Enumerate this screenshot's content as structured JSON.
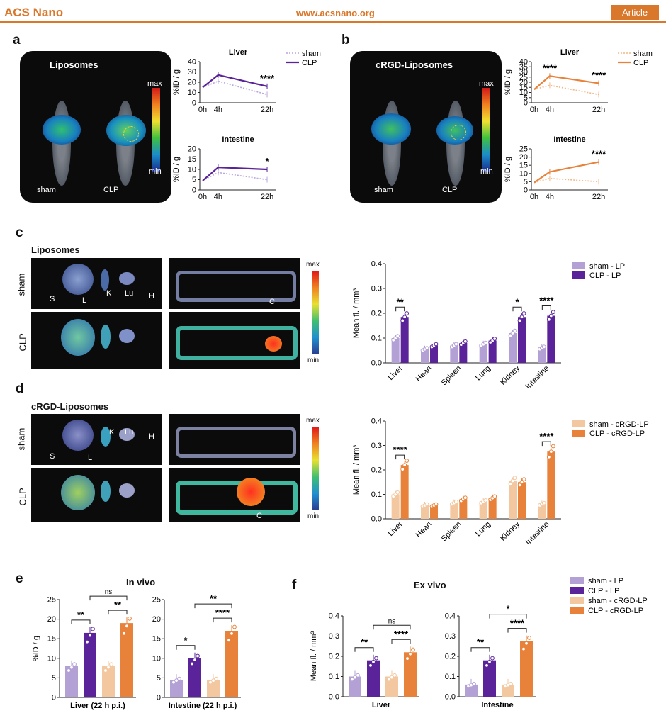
{
  "header": {
    "journal": "ACS Nano",
    "url": "www.acsnano.org",
    "section": "Article"
  },
  "panels": {
    "a": {
      "letter": "a",
      "image_title": "Liposomes",
      "sham": "sham",
      "clp": "CLP",
      "max": "max",
      "min": "min"
    },
    "b": {
      "letter": "b",
      "image_title": "cRGD-Liposomes",
      "sham": "sham",
      "clp": "CLP",
      "max": "max",
      "min": "min"
    },
    "c": {
      "letter": "c",
      "title": "Liposomes",
      "row1": "sham",
      "row2": "CLP",
      "organs": [
        "S",
        "L",
        "K",
        "Lu",
        "H"
      ],
      "colon": "C",
      "max": "max",
      "min": "min"
    },
    "d": {
      "letter": "d",
      "title": "cRGD-Liposomes",
      "row1": "sham",
      "row2": "CLP",
      "organs": [
        "S",
        "L",
        "K",
        "Lu",
        "H"
      ],
      "colon": "C",
      "max": "max",
      "min": "min"
    },
    "e": {
      "letter": "e",
      "title": "In vivo"
    },
    "f": {
      "letter": "f",
      "title": "Ex vivo"
    }
  },
  "colors": {
    "sham_lp": "#b3a1d6",
    "clp_lp": "#5b2399",
    "sham_rgd": "#f3c79f",
    "clp_rgd": "#e8823a",
    "accent": "#d9772b"
  },
  "chart_data": [
    {
      "id": "a-liver",
      "type": "line",
      "title": "Liver",
      "ylabel": "%ID / g",
      "x": [
        "0h",
        "4h",
        "22h"
      ],
      "ylim": [
        0,
        40
      ],
      "yticks": [
        0,
        10,
        20,
        30,
        40
      ],
      "series": [
        {
          "name": "sham",
          "values": [
            15,
            21,
            8
          ],
          "style": "dotted"
        },
        {
          "name": "CLP",
          "values": [
            15,
            27,
            16
          ],
          "style": "solid"
        }
      ],
      "annotations": [
        {
          "at": "22h",
          "text": "****"
        }
      ]
    },
    {
      "id": "a-intestine",
      "type": "line",
      "title": "Intestine",
      "ylabel": "%ID / g",
      "x": [
        "0h",
        "4h",
        "22h"
      ],
      "ylim": [
        0,
        20
      ],
      "yticks": [
        0,
        5,
        10,
        15,
        20
      ],
      "series": [
        {
          "name": "sham",
          "values": [
            4.5,
            8.5,
            5
          ],
          "style": "dotted"
        },
        {
          "name": "CLP",
          "values": [
            4.5,
            11,
            10
          ],
          "style": "solid"
        }
      ],
      "annotations": [
        {
          "at": "22h",
          "text": "*"
        }
      ]
    },
    {
      "id": "b-liver",
      "type": "line",
      "title": "Liver",
      "ylabel": "%ID / g",
      "x": [
        "0h",
        "4h",
        "22h"
      ],
      "ylim": [
        0,
        40
      ],
      "yticks": [
        0,
        5,
        10,
        15,
        20,
        25,
        30,
        35,
        40
      ],
      "series": [
        {
          "name": "sham",
          "values": [
            13,
            17,
            8
          ],
          "style": "dotted"
        },
        {
          "name": "CLP",
          "values": [
            13,
            26,
            19
          ],
          "style": "solid"
        }
      ],
      "annotations": [
        {
          "at": "4h",
          "text": "****"
        },
        {
          "at": "22h",
          "text": "****"
        }
      ]
    },
    {
      "id": "b-intestine",
      "type": "line",
      "title": "Intestine",
      "ylabel": "%ID / g",
      "x": [
        "0h",
        "4h",
        "22h"
      ],
      "ylim": [
        0,
        25
      ],
      "yticks": [
        0,
        5,
        10,
        15,
        20,
        25
      ],
      "series": [
        {
          "name": "sham",
          "values": [
            4.5,
            7,
            5
          ],
          "style": "dotted"
        },
        {
          "name": "CLP",
          "values": [
            4.5,
            11,
            17
          ],
          "style": "solid"
        }
      ],
      "annotations": [
        {
          "at": "22h",
          "text": "****"
        }
      ]
    },
    {
      "id": "c-bars",
      "type": "bar",
      "ylabel": "Mean fl. / mm³",
      "ylim": [
        0,
        0.4
      ],
      "yticks": [
        0.0,
        0.1,
        0.2,
        0.3,
        0.4
      ],
      "categories": [
        "Liver",
        "Heart",
        "Spleen",
        "Lung",
        "Kidney",
        "Intestine"
      ],
      "series": [
        {
          "name": "sham - LP",
          "values": [
            0.1,
            0.055,
            0.07,
            0.075,
            0.12,
            0.06
          ]
        },
        {
          "name": "CLP - LP",
          "values": [
            0.185,
            0.07,
            0.08,
            0.09,
            0.185,
            0.19
          ]
        }
      ],
      "significance": [
        {
          "category": "Liver",
          "text": "**"
        },
        {
          "category": "Kidney",
          "text": "*"
        },
        {
          "category": "Intestine",
          "text": "****"
        }
      ]
    },
    {
      "id": "d-bars",
      "type": "bar",
      "ylabel": "Mean fl. / mm³",
      "ylim": [
        0,
        0.4
      ],
      "yticks": [
        0.0,
        0.1,
        0.2,
        0.3,
        0.4
      ],
      "categories": [
        "Liver",
        "Heart",
        "Spleen",
        "Lung",
        "Kidney",
        "Intestine"
      ],
      "series": [
        {
          "name": "sham - cRGD-LP",
          "values": [
            0.1,
            0.055,
            0.065,
            0.07,
            0.155,
            0.06
          ]
        },
        {
          "name": "CLP - cRGD-LP",
          "values": [
            0.22,
            0.055,
            0.08,
            0.085,
            0.15,
            0.275
          ]
        }
      ],
      "significance": [
        {
          "category": "Liver",
          "text": "****"
        },
        {
          "category": "Intestine",
          "text": "****"
        }
      ]
    },
    {
      "id": "e-liver",
      "type": "bar",
      "ylabel": "%ID / g",
      "xlabel": "Liver (22 h p.i.)",
      "ylim": [
        0,
        25
      ],
      "yticks": [
        0,
        5,
        10,
        15,
        20,
        25
      ],
      "categories": [
        "sham - LP",
        "CLP - LP",
        "sham - cRGD-LP",
        "CLP - cRGD-LP"
      ],
      "values": [
        8,
        16.5,
        8,
        19
      ],
      "significance": [
        {
          "pair": [
            0,
            1
          ],
          "text": "**"
        },
        {
          "pair": [
            2,
            3
          ],
          "text": "**"
        },
        {
          "pair": [
            1,
            3
          ],
          "text": "ns"
        }
      ]
    },
    {
      "id": "e-intestine",
      "type": "bar",
      "xlabel": "Intestine (22 h p.i.)",
      "ylim": [
        0,
        25
      ],
      "yticks": [
        0,
        5,
        10,
        15,
        20,
        25
      ],
      "categories": [
        "sham - LP",
        "CLP - LP",
        "sham - cRGD-LP",
        "CLP - cRGD-LP"
      ],
      "values": [
        4.5,
        10,
        4.5,
        17
      ],
      "significance": [
        {
          "pair": [
            0,
            1
          ],
          "text": "*"
        },
        {
          "pair": [
            2,
            3
          ],
          "text": "****"
        },
        {
          "pair": [
            1,
            3
          ],
          "text": "**"
        }
      ]
    },
    {
      "id": "f-liver",
      "type": "bar",
      "ylabel": "Mean fl. / mm³",
      "xlabel": "Liver",
      "ylim": [
        0,
        0.4
      ],
      "yticks": [
        0.0,
        0.1,
        0.2,
        0.3,
        0.4
      ],
      "categories": [
        "sham - LP",
        "CLP - LP",
        "sham - cRGD-LP",
        "CLP - cRGD-LP"
      ],
      "values": [
        0.1,
        0.18,
        0.1,
        0.22
      ],
      "significance": [
        {
          "pair": [
            0,
            1
          ],
          "text": "**"
        },
        {
          "pair": [
            2,
            3
          ],
          "text": "****"
        },
        {
          "pair": [
            1,
            3
          ],
          "text": "ns"
        }
      ]
    },
    {
      "id": "f-intestine",
      "type": "bar",
      "xlabel": "Intestine",
      "ylim": [
        0,
        0.4
      ],
      "yticks": [
        0.0,
        0.1,
        0.2,
        0.3,
        0.4
      ],
      "categories": [
        "sham - LP",
        "CLP - LP",
        "sham - cRGD-LP",
        "CLP - cRGD-LP"
      ],
      "values": [
        0.06,
        0.18,
        0.06,
        0.275
      ],
      "significance": [
        {
          "pair": [
            0,
            1
          ],
          "text": "**"
        },
        {
          "pair": [
            2,
            3
          ],
          "text": "****"
        },
        {
          "pair": [
            1,
            3
          ],
          "text": "*"
        }
      ]
    }
  ],
  "legend_ef": [
    "sham - LP",
    "CLP - LP",
    "sham - cRGD-LP",
    "CLP - cRGD-LP"
  ]
}
